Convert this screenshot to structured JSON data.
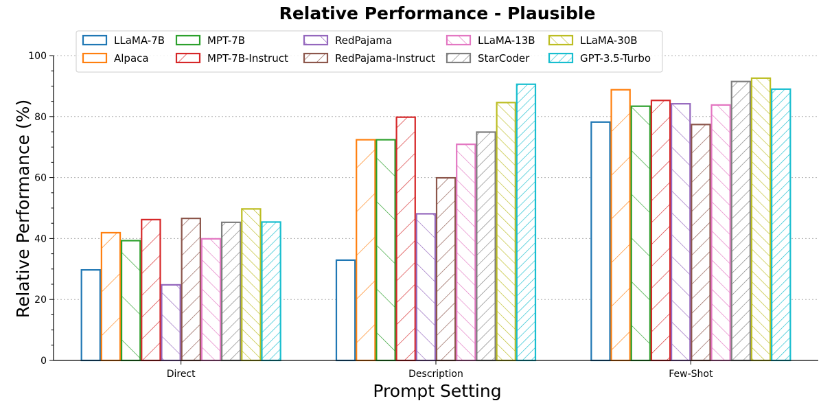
{
  "chart_data": {
    "type": "bar",
    "title": "Relative Performance - Plausible",
    "xlabel": "Prompt Setting",
    "ylabel": "Relative Performance (%)",
    "ylim": [
      0,
      100
    ],
    "yticks": [
      0,
      20,
      40,
      60,
      80,
      100
    ],
    "grid": "y-dotted",
    "legend_position": "top",
    "categories": [
      "Direct",
      "Description",
      "Few-Shot"
    ],
    "series": [
      {
        "name": "LLaMA-7B",
        "color": "#1f77b4",
        "hatch": "none",
        "values": [
          29.7,
          32.9,
          78.2
        ]
      },
      {
        "name": "Alpaca",
        "color": "#ff7f0e",
        "hatch": "/",
        "values": [
          41.9,
          72.4,
          88.8
        ]
      },
      {
        "name": "MPT-7B",
        "color": "#2ca02c",
        "hatch": "\\",
        "values": [
          39.3,
          72.4,
          83.4
        ]
      },
      {
        "name": "MPT-7B-Instruct",
        "color": "#d62728",
        "hatch": "//",
        "values": [
          46.2,
          79.8,
          85.3
        ]
      },
      {
        "name": "RedPajama",
        "color": "#9467bd",
        "hatch": "\\\\",
        "values": [
          24.8,
          48.1,
          84.2
        ]
      },
      {
        "name": "RedPajama-Instruct",
        "color": "#8c564b",
        "hatch": "///",
        "values": [
          46.6,
          59.9,
          77.4
        ]
      },
      {
        "name": "LLaMA-13B",
        "color": "#e377c2",
        "hatch": "\\\\\\",
        "values": [
          39.9,
          70.9,
          83.8
        ]
      },
      {
        "name": "StarCoder",
        "color": "#7f7f7f",
        "hatch": "////",
        "values": [
          45.3,
          74.9,
          91.5
        ]
      },
      {
        "name": "LLaMA-30B",
        "color": "#bcbd22",
        "hatch": "\\\\\\\\",
        "values": [
          49.7,
          84.6,
          92.6
        ]
      },
      {
        "name": "GPT-3.5-Turbo",
        "color": "#17becf",
        "hatch": "/////",
        "values": [
          45.4,
          90.6,
          89.0
        ]
      }
    ]
  }
}
